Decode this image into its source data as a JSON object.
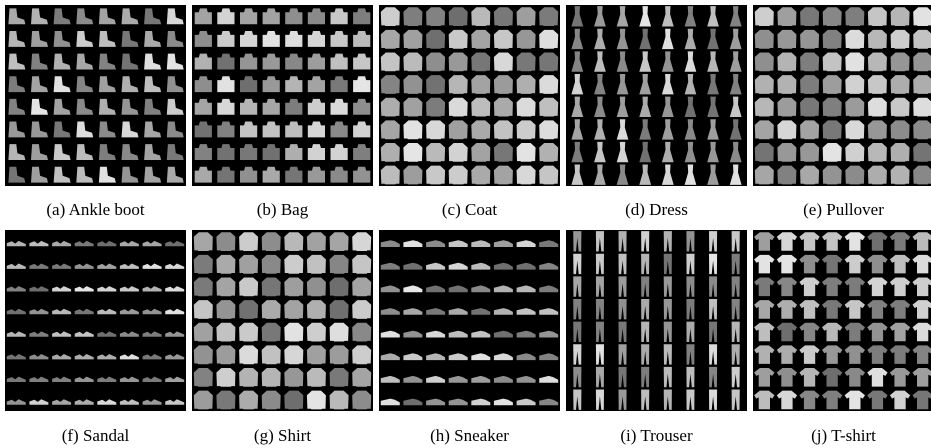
{
  "figure": {
    "panels": [
      {
        "caption": "(a) Ankle boot"
      },
      {
        "caption": "(b) Bag"
      },
      {
        "caption": "(c) Coat"
      },
      {
        "caption": "(d) Dress"
      },
      {
        "caption": "(e) Pullover"
      },
      {
        "caption": "(f) Sandal"
      },
      {
        "caption": "(g) Shirt"
      },
      {
        "caption": "(h) Sneaker"
      },
      {
        "caption": "(i) Trouser"
      },
      {
        "caption": "(j) T-shirt"
      }
    ]
  }
}
